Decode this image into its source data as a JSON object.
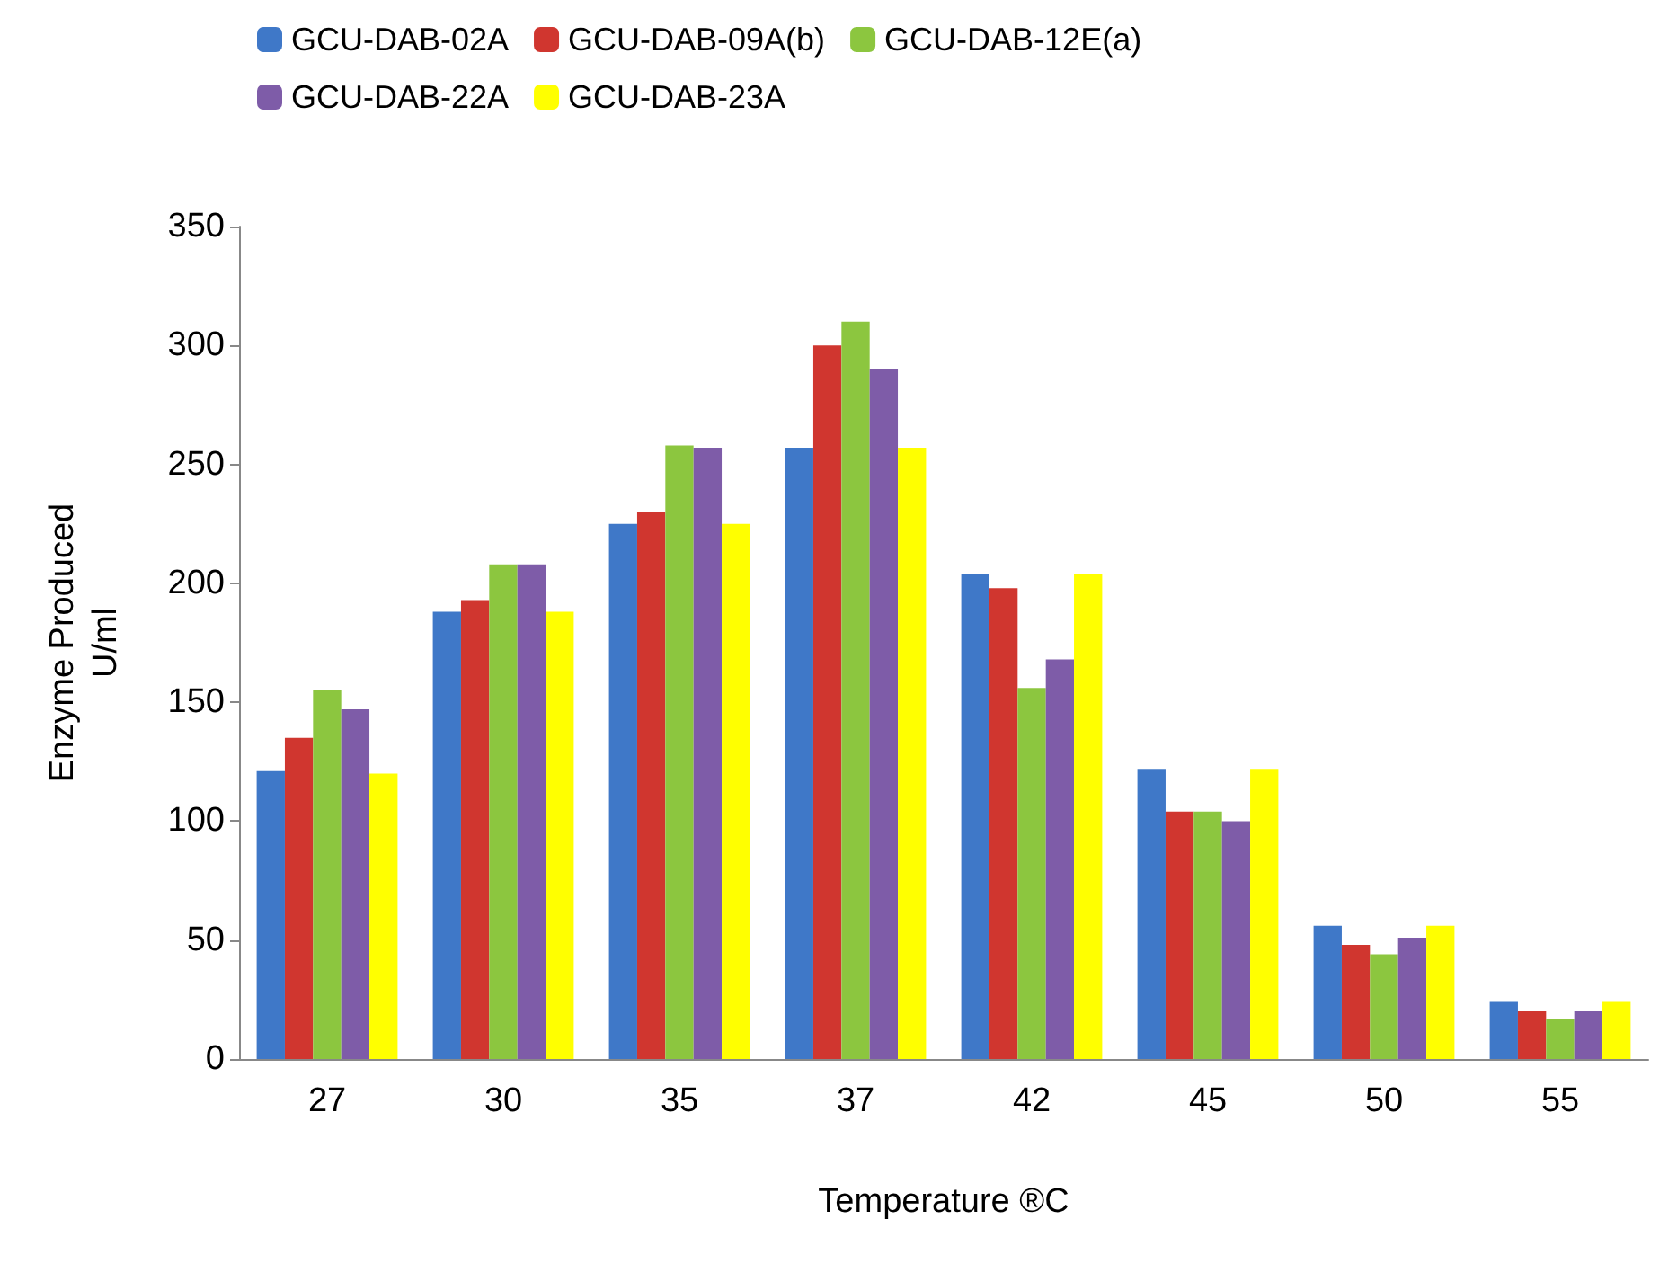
{
  "chart_data": {
    "type": "bar",
    "xlabel": "Temperature ®C",
    "ylabel": "Enzyme Produced U/ml",
    "categories": [
      "27",
      "30",
      "35",
      "37",
      "42",
      "45",
      "50",
      "55"
    ],
    "series": [
      {
        "name": "GCU-DAB-02A",
        "color": "#3f78c8",
        "values": [
          121,
          188,
          225,
          257,
          204,
          122,
          56,
          24
        ]
      },
      {
        "name": "GCU-DAB-09A(b)",
        "color": "#d0362f",
        "values": [
          135,
          193,
          230,
          300,
          198,
          104,
          48,
          20
        ]
      },
      {
        "name": "GCU-DAB-12E(a)",
        "color": "#8cc63f",
        "values": [
          155,
          208,
          258,
          310,
          156,
          104,
          44,
          17
        ]
      },
      {
        "name": "GCU-DAB-22A",
        "color": "#7e5ca8",
        "values": [
          147,
          208,
          257,
          290,
          168,
          100,
          51,
          20
        ]
      },
      {
        "name": "GCU-DAB-23A",
        "color": "#ffff00",
        "values": [
          120,
          188,
          225,
          257,
          204,
          122,
          56,
          24
        ]
      }
    ],
    "ylim": [
      0,
      350
    ],
    "yticks": [
      0,
      50,
      100,
      150,
      200,
      250,
      300,
      350
    ],
    "grid": false,
    "legend": "top"
  }
}
